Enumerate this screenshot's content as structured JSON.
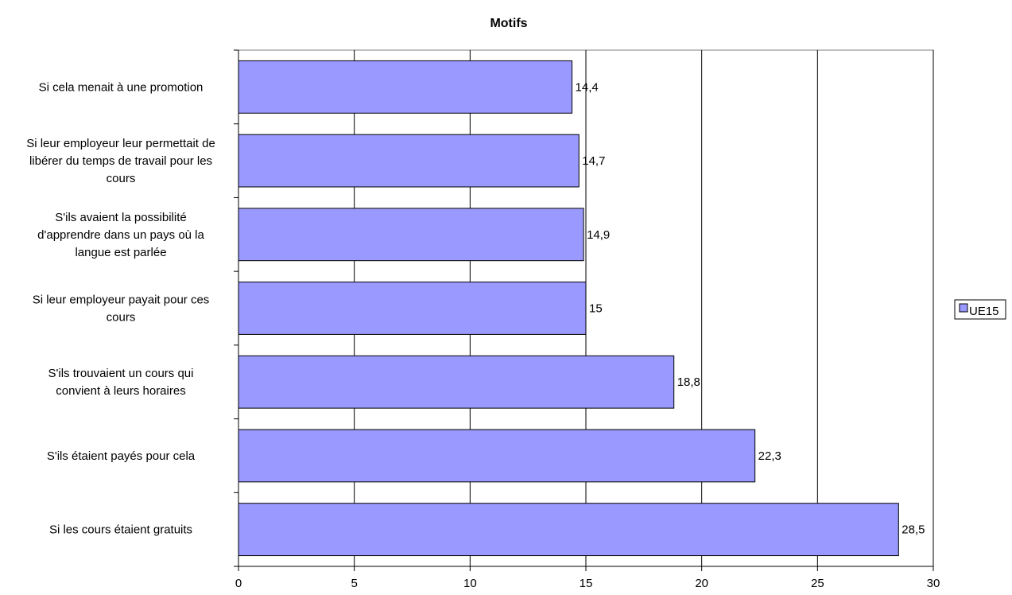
{
  "chart_data": {
    "type": "bar",
    "orientation": "horizontal",
    "title": "Motifs",
    "xlabel": "",
    "ylabel": "",
    "xlim": [
      0,
      30
    ],
    "xticks": [
      0,
      5,
      10,
      15,
      20,
      25,
      30
    ],
    "grid": "vertical",
    "legend_position": "right",
    "bar_color": "#9999ff",
    "categories": [
      [
        "Si cela menait à une promotion"
      ],
      [
        "Si leur employeur leur permettait de",
        "libérer du temps de travail pour les",
        "cours"
      ],
      [
        "S'ils avaient la possibilité",
        "d'apprendre dans un pays où la",
        "langue est parlée"
      ],
      [
        "Si leur employeur payait pour ces",
        "cours"
      ],
      [
        "S'ils trouvaient un cours qui",
        "convient à leurs horaires"
      ],
      [
        "S'ils étaient payés pour cela"
      ],
      [
        "Si les cours étaient gratuits"
      ]
    ],
    "series": [
      {
        "name": "UE15",
        "values": [
          14.4,
          14.7,
          14.9,
          15,
          18.8,
          22.3,
          28.5
        ],
        "labels": [
          "14,4",
          "14,7",
          "14,9",
          "15",
          "18,8",
          "22,3",
          "28,5"
        ]
      }
    ]
  }
}
